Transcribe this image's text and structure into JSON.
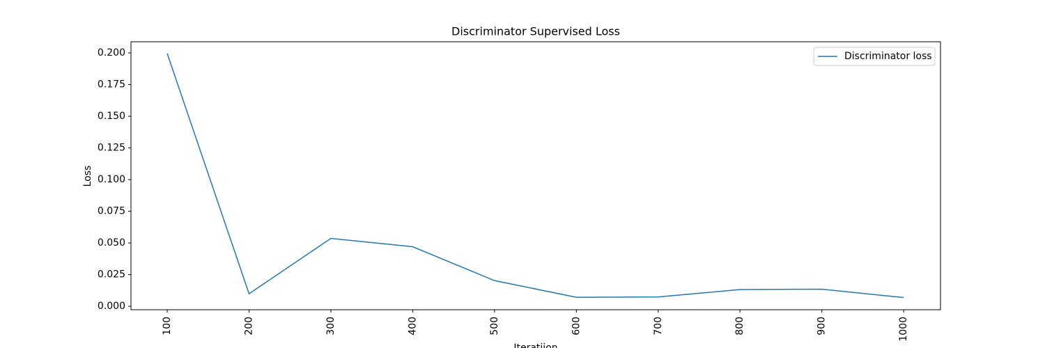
{
  "chart_data": {
    "type": "line",
    "title": "Discriminator  Supervised Loss",
    "xlabel": "Iteratiion",
    "ylabel": "Loss",
    "x": [
      100,
      200,
      300,
      400,
      500,
      600,
      700,
      800,
      900,
      1000
    ],
    "series": [
      {
        "name": "Discriminator loss",
        "color": "#1f77b4",
        "values": [
          0.1995,
          0.0099,
          0.0536,
          0.047,
          0.0203,
          0.0071,
          0.0074,
          0.0132,
          0.0135,
          0.0069
        ]
      }
    ],
    "xlim": [
      55.7,
      1045
    ],
    "ylim": [
      -0.0027,
      0.2088
    ],
    "xticks": [
      100,
      200,
      300,
      400,
      500,
      600,
      700,
      800,
      900,
      1000
    ],
    "yticks": [
      {
        "value": 0,
        "label": "0.000"
      },
      {
        "value": 0.025,
        "label": "0.025"
      },
      {
        "value": 0.05,
        "label": "0.050"
      },
      {
        "value": 0.075,
        "label": "0.075"
      },
      {
        "value": 0.1,
        "label": "0.100"
      },
      {
        "value": 0.125,
        "label": "0.125"
      },
      {
        "value": 0.15,
        "label": "0.150"
      },
      {
        "value": 0.175,
        "label": "0.175"
      },
      {
        "value": 0.2,
        "label": "0.200"
      }
    ],
    "legend": "upper right"
  }
}
